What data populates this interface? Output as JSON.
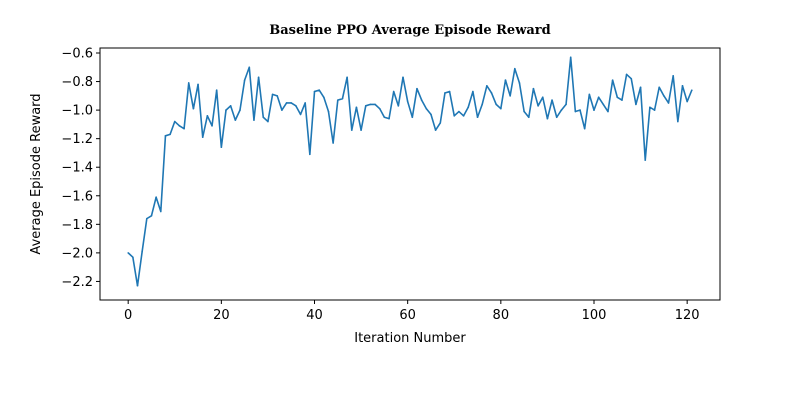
{
  "chart_data": {
    "type": "line",
    "title": "Baseline PPO Average Episode Reward",
    "xlabel": "Iteration Number",
    "ylabel": "Average Episode Reward",
    "xlim": [
      -6.05,
      127.05
    ],
    "ylim": [
      -2.33,
      -0.565
    ],
    "xticks": [
      0,
      20,
      40,
      60,
      80,
      100,
      120
    ],
    "yticks": [
      -2.2,
      -2.0,
      -1.8,
      -1.6,
      -1.4,
      -1.2,
      -1.0,
      -0.8,
      -0.6
    ],
    "grid": false,
    "series": [
      {
        "color": "#1f77b4",
        "x": [
          0,
          1,
          2,
          3,
          4,
          5,
          6,
          7,
          8,
          9,
          10,
          11,
          12,
          13,
          14,
          15,
          16,
          17,
          18,
          19,
          20,
          21,
          22,
          23,
          24,
          25,
          26,
          27,
          28,
          29,
          30,
          31,
          32,
          33,
          34,
          35,
          36,
          37,
          38,
          39,
          40,
          41,
          42,
          43,
          44,
          45,
          46,
          47,
          48,
          49,
          50,
          51,
          52,
          53,
          54,
          55,
          56,
          57,
          58,
          59,
          60,
          61,
          62,
          63,
          64,
          65,
          66,
          67,
          68,
          69,
          70,
          71,
          72,
          73,
          74,
          75,
          76,
          77,
          78,
          79,
          80,
          81,
          82,
          83,
          84,
          85,
          86,
          87,
          88,
          89,
          90,
          91,
          92,
          93,
          94,
          95,
          96,
          97,
          98,
          99,
          100,
          101,
          102,
          103,
          104,
          105,
          106,
          107,
          108,
          109,
          110,
          111,
          112,
          113,
          114,
          115,
          116,
          117,
          118,
          119,
          120,
          121
        ],
        "y": [
          -2.0,
          -2.03,
          -2.23,
          -1.99,
          -1.76,
          -1.74,
          -1.61,
          -1.71,
          -1.18,
          -1.17,
          -1.08,
          -1.11,
          -1.13,
          -0.81,
          -0.99,
          -0.82,
          -1.19,
          -1.04,
          -1.11,
          -0.86,
          -1.26,
          -1.0,
          -0.97,
          -1.07,
          -1.0,
          -0.79,
          -0.7,
          -1.07,
          -0.77,
          -1.05,
          -1.08,
          -0.89,
          -0.9,
          -1.0,
          -0.95,
          -0.95,
          -0.97,
          -1.03,
          -0.95,
          -1.31,
          -0.87,
          -0.86,
          -0.91,
          -1.01,
          -1.23,
          -0.93,
          -0.92,
          -0.77,
          -1.14,
          -0.98,
          -1.14,
          -0.97,
          -0.96,
          -0.96,
          -0.99,
          -1.05,
          -1.06,
          -0.87,
          -0.97,
          -0.77,
          -0.94,
          -1.05,
          -0.85,
          -0.93,
          -0.99,
          -1.03,
          -1.14,
          -1.09,
          -0.88,
          -0.87,
          -1.04,
          -1.01,
          -1.04,
          -0.98,
          -0.87,
          -1.05,
          -0.96,
          -0.83,
          -0.88,
          -0.96,
          -0.99,
          -0.79,
          -0.9,
          -0.71,
          -0.81,
          -1.01,
          -1.05,
          -0.85,
          -0.97,
          -0.91,
          -1.06,
          -0.93,
          -1.05,
          -1.0,
          -0.96,
          -0.63,
          -1.01,
          -1.0,
          -1.13,
          -0.89,
          -1.0,
          -0.91,
          -0.96,
          -1.01,
          -0.79,
          -0.91,
          -0.93,
          -0.75,
          -0.78,
          -0.96,
          -0.84,
          -1.35,
          -0.98,
          -1.0,
          -0.84,
          -0.9,
          -0.95,
          -0.76,
          -1.08,
          -0.83,
          -0.94,
          -0.86
        ]
      }
    ]
  }
}
